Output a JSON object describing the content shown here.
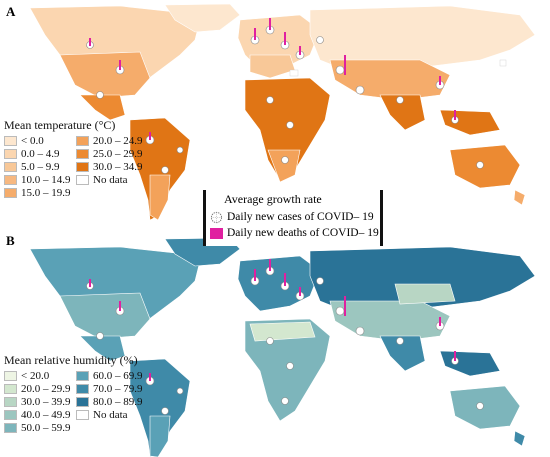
{
  "panel_a": {
    "letter": "A",
    "legend_title": "Mean temperature (°C)",
    "legend": [
      {
        "label": "< 0.0",
        "color": "#fde7cf"
      },
      {
        "label": "20.0 – 24.9",
        "color": "#f3a25a"
      },
      {
        "label": "0.0 – 4.9",
        "color": "#fbd6b0"
      },
      {
        "label": "25.0 – 29.9",
        "color": "#ec8a32"
      },
      {
        "label": "5.0 – 9.9",
        "color": "#f8c898"
      },
      {
        "label": "30.0 – 34.9",
        "color": "#e07515"
      },
      {
        "label": "10.0 – 14.9",
        "color": "#f7b880"
      },
      {
        "label": "No data",
        "color": "#ffffff"
      },
      {
        "label": "15.0 – 19.9",
        "color": "#f5ac6b"
      }
    ]
  },
  "panel_b": {
    "letter": "B",
    "legend_title": "Mean relative humidity (%)",
    "legend": [
      {
        "label": "< 20.0",
        "color": "#eef5e4"
      },
      {
        "label": "60.0 – 69.9",
        "color": "#5aa1b6"
      },
      {
        "label": "20.0 – 29.9",
        "color": "#d3e7cf"
      },
      {
        "label": "70.0 – 79.9",
        "color": "#3f8aa8"
      },
      {
        "label": "30.0 – 39.9",
        "color": "#b8d6c4"
      },
      {
        "label": "80.0 – 89.9",
        "color": "#2a7397"
      },
      {
        "label": "40.0 – 49.9",
        "color": "#9cc6bf"
      },
      {
        "label": "No data",
        "color": "#ffffff"
      },
      {
        "label": "50.0 – 59.9",
        "color": "#7db5bb"
      }
    ]
  },
  "growth_legend": {
    "title": "Average growth rate",
    "cases_label": "Daily new cases of COVID– 19",
    "deaths_label": "Daily new deaths of COVID– 19",
    "death_color": "#e020a0"
  }
}
